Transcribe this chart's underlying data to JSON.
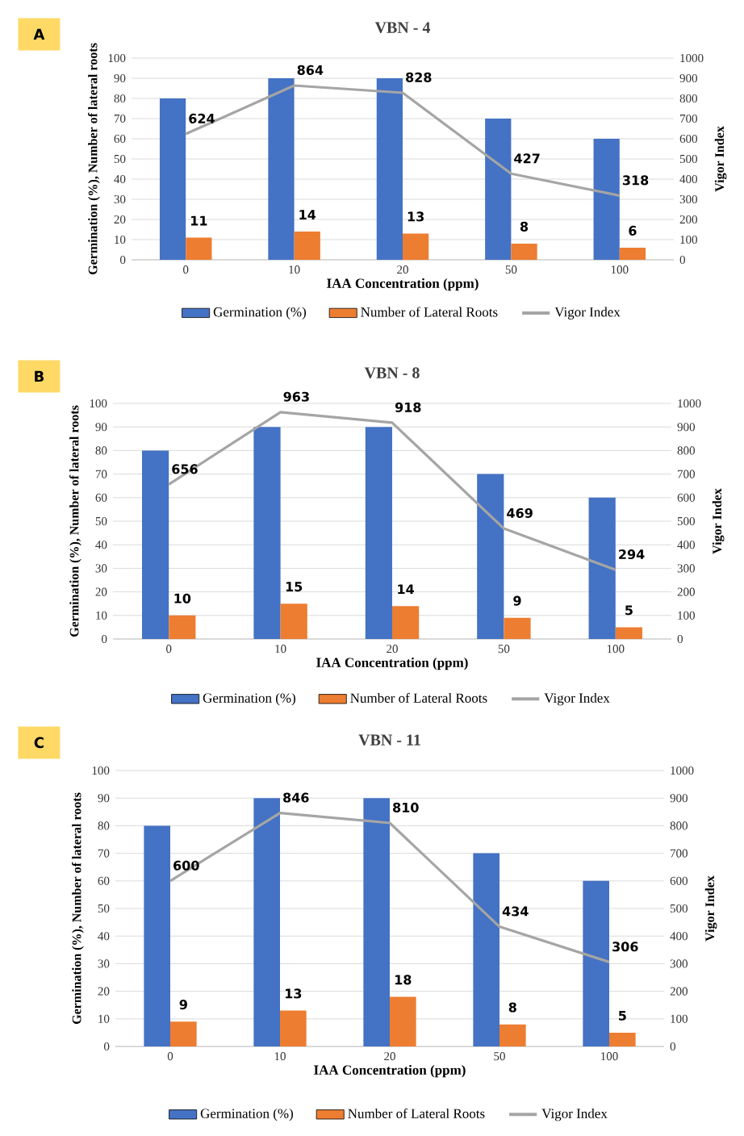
{
  "chart_data": [
    {
      "type": "bar",
      "title": "VBN - 4",
      "annotations": [
        "A"
      ],
      "categories": [
        "0",
        "10",
        "20",
        "50",
        "100"
      ],
      "xlabel": "IAA Concentration (ppm)",
      "ylabel": "Germination (%), Number of lateral roots",
      "y2label": "Vigor Index",
      "ylim": [
        0,
        100
      ],
      "yticks": [
        0,
        10,
        20,
        30,
        40,
        50,
        60,
        70,
        80,
        90,
        100
      ],
      "y2lim": [
        0,
        1000
      ],
      "y2ticks": [
        0,
        100,
        200,
        300,
        400,
        500,
        600,
        700,
        800,
        900,
        1000
      ],
      "grid": "y",
      "legend": "bottom",
      "series": [
        {
          "name": "Germination (%)",
          "color": "#4472c4",
          "values": [
            80,
            90,
            90,
            70,
            60
          ]
        },
        {
          "name": "Number of Lateral Roots",
          "color": "#ed7d31",
          "values": [
            11,
            14,
            13,
            8,
            6
          ],
          "value_labels": [
            "11",
            "14",
            "13",
            "8",
            "6"
          ]
        },
        {
          "name": "Vigor Index",
          "type": "line",
          "axis": "y2",
          "color": "#a5a5a5",
          "values": [
            624,
            864,
            828,
            427,
            318
          ],
          "value_labels": [
            "624",
            "864",
            "828",
            "427",
            "318"
          ]
        }
      ]
    },
    {
      "type": "bar",
      "title": "VBN - 8",
      "annotations": [
        "B"
      ],
      "categories": [
        "0",
        "10",
        "20",
        "50",
        "100"
      ],
      "xlabel": "IAA Concentration (ppm)",
      "ylabel": "Germination (%), Number of lateral roots",
      "y2label": "Vigor Index",
      "ylim": [
        0,
        100
      ],
      "yticks": [
        0,
        10,
        20,
        30,
        40,
        50,
        60,
        70,
        80,
        90,
        100
      ],
      "y2lim": [
        0,
        1000
      ],
      "y2ticks": [
        0,
        100,
        200,
        300,
        400,
        500,
        600,
        700,
        800,
        900,
        1000
      ],
      "grid": "y",
      "legend": "bottom",
      "series": [
        {
          "name": "Germination (%)",
          "color": "#4472c4",
          "values": [
            80,
            90,
            90,
            70,
            60
          ]
        },
        {
          "name": "Number of Lateral Roots",
          "color": "#ed7d31",
          "values": [
            10,
            15,
            14,
            9,
            5
          ],
          "value_labels": [
            "10",
            "15",
            "14",
            "9",
            "5"
          ]
        },
        {
          "name": "Vigor Index",
          "type": "line",
          "axis": "y2",
          "color": "#a5a5a5",
          "values": [
            656,
            963,
            918,
            469,
            294
          ],
          "value_labels": [
            "656",
            "963",
            "918",
            "469",
            "294"
          ]
        }
      ]
    },
    {
      "type": "bar",
      "title": "VBN - 11",
      "annotations": [
        "C"
      ],
      "categories": [
        "0",
        "10",
        "20",
        "50",
        "100"
      ],
      "xlabel": "IAA Concentration (ppm)",
      "ylabel": "Germination (%), Number of lateral roots",
      "y2label": "Vigor Index",
      "ylim": [
        0,
        100
      ],
      "yticks": [
        0,
        10,
        20,
        30,
        40,
        50,
        60,
        70,
        80,
        90,
        100
      ],
      "y2lim": [
        0,
        1000
      ],
      "y2ticks": [
        0,
        100,
        200,
        300,
        400,
        500,
        600,
        700,
        800,
        900,
        1000
      ],
      "grid": "y",
      "legend": "bottom",
      "series": [
        {
          "name": "Germination (%)",
          "color": "#4472c4",
          "values": [
            80,
            90,
            90,
            70,
            60
          ]
        },
        {
          "name": "Number of Lateral Roots",
          "color": "#ed7d31",
          "values": [
            9,
            13,
            18,
            8,
            5
          ],
          "value_labels": [
            "9",
            "13",
            "18",
            "8",
            "5"
          ]
        },
        {
          "name": "Vigor Index",
          "type": "line",
          "axis": "y2",
          "color": "#a5a5a5",
          "values": [
            600,
            846,
            810,
            434,
            306
          ],
          "value_labels": [
            "600",
            "846",
            "810",
            "434",
            "306"
          ]
        }
      ]
    }
  ]
}
